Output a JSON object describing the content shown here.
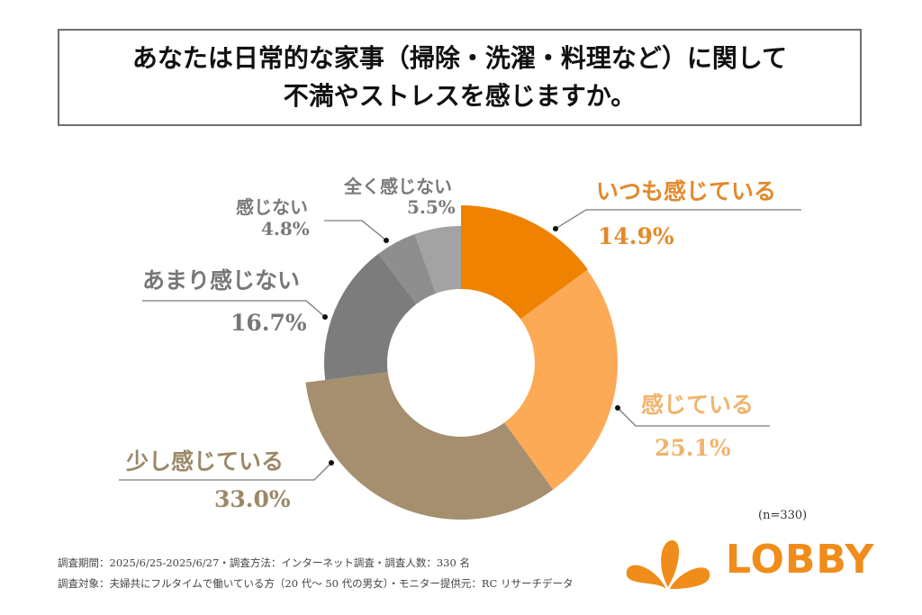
{
  "title": {
    "line1": "あなたは日常的な家事（掃除・洗濯・料理など）に関して",
    "line2": "不満やストレスを感じますか。"
  },
  "chart_data": {
    "type": "pie",
    "subtype": "donut",
    "title": "あなたは日常的な家事（掃除・洗濯・料理など）に関して不満やストレスを感じますか。",
    "start_angle": "top",
    "direction": "clockwise",
    "slices": [
      {
        "label": "いつも感じている",
        "value": 14.9,
        "value_label": "14.9%",
        "color": "#ef8200",
        "label_color": "#e2892a"
      },
      {
        "label": "感じている",
        "value": 25.1,
        "value_label": "25.1%",
        "color": "#fcaa56",
        "label_color": "#f0b46c"
      },
      {
        "label": "少し感じている",
        "value": 33.0,
        "value_label": "33.0%",
        "color": "#a58f6e",
        "label_color": "#9c8868"
      },
      {
        "label": "あまり感じない",
        "value": 16.7,
        "value_label": "16.7%",
        "color": "#7c7c7c",
        "label_color": "#777777"
      },
      {
        "label": "感じない",
        "value": 4.8,
        "value_label": "4.8%",
        "color": "#8e8e8e",
        "label_color": "#7a7a7a"
      },
      {
        "label": "全く感じない",
        "value": 5.5,
        "value_label": "5.5%",
        "color": "#a3a3a3",
        "label_color": "#7a7a7a"
      }
    ],
    "unit": "%",
    "sample_size": "(n=330)"
  },
  "footer": {
    "line1": "調査期間：2025/6/25-2025/6/27・調査方法：インターネット調査・調査人数：330 名",
    "line2": "調査対象：夫婦共にフルタイムで働いている方（20 代～ 50 代の男女）・モニター提供元：RC リサーチデータ"
  },
  "logo": {
    "text": "LOBBY",
    "color": "#f08c1a"
  }
}
